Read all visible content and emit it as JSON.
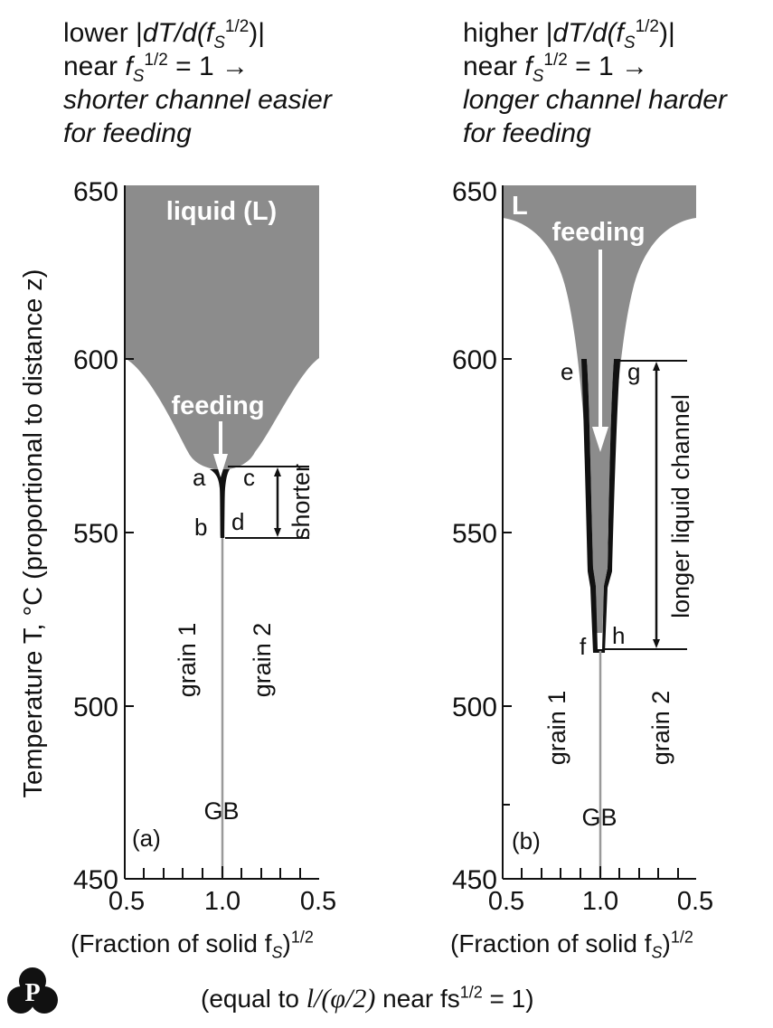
{
  "panel_a": {
    "header": {
      "line1_prefix": "lower |",
      "line1_expr": "dT/d(f",
      "line1_sub": "S",
      "line1_sup": "1/2",
      "line1_suffix": ")|",
      "line2_prefix": "near ",
      "line2_f": "f",
      "line2_sub": "S",
      "line2_sup": "1/2",
      "line2_suffix": " = 1 →",
      "line3": "shorter channel easier",
      "line4": "for feeding"
    },
    "label": "(a)",
    "region_label": "liquid (L)",
    "feeding_label": "feeding",
    "point_labels": {
      "a": "a",
      "b": "b",
      "c": "c",
      "d": "d"
    },
    "length_label": "shorter",
    "grain1": "grain 1",
    "grain2": "grain 2",
    "gb": "GB"
  },
  "panel_b": {
    "header": {
      "line1_prefix": "higher |",
      "line1_expr": "dT/d(f",
      "line1_sub": "S",
      "line1_sup": "1/2",
      "line1_suffix": ")|",
      "line2_prefix": "near ",
      "line2_f": "f",
      "line2_sub": "S",
      "line2_sup": "1/2",
      "line2_suffix": " = 1 →",
      "line3": "longer channel harder",
      "line4": "for feeding"
    },
    "label": "(b)",
    "region_label": "L",
    "feeding_label": "feeding",
    "point_labels": {
      "e": "e",
      "f": "f",
      "g": "g",
      "h": "h"
    },
    "length_label": "longer liquid channel",
    "grain1": "grain 1",
    "grain2": "grain 2",
    "gb": "GB"
  },
  "axes": {
    "y_title": "Temperature T, °C (proportional to distance z)",
    "y_ticks": [
      "650",
      "600",
      "550",
      "500",
      "450"
    ],
    "y_range_C": [
      450,
      650
    ],
    "x_ticks": [
      "0.5",
      "1.0",
      "0.5"
    ],
    "x_title_main": "(Fraction of solid f",
    "x_title_sub": "S",
    "x_title_close": ")",
    "x_title_sup": "1/2"
  },
  "footer": {
    "prefix": "(equal to ",
    "expr": "l/(φ/2)",
    "mid": " near fs",
    "sup": "1/2",
    "suffix": " = 1)"
  },
  "levels": {
    "panel_a": {
      "channel_top_C": 569,
      "channel_bottom_C": 549
    },
    "panel_b": {
      "channel_top_C": 600,
      "channel_bottom_C": 517
    }
  },
  "colors": {
    "liquid": "#8c8c8c",
    "line": "#111111",
    "text_on_liquid": "#ffffff"
  },
  "logo_icon": "publisher-logo-icon"
}
